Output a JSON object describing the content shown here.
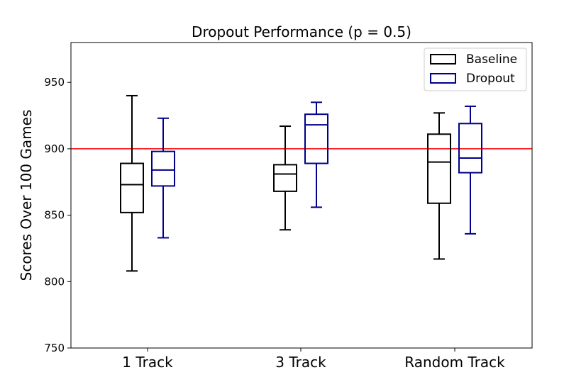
{
  "chart_data": {
    "type": "box",
    "title": "Dropout Performance (p = 0.5)",
    "xlabel": "",
    "ylabel": "Scores Over 100 Games",
    "categories": [
      "1 Track",
      "3 Track",
      "Random Track"
    ],
    "ylim": [
      750,
      980
    ],
    "yticks": [
      750,
      800,
      850,
      900,
      950
    ],
    "grid": false,
    "legend_position": "top-right",
    "reference_line": {
      "y": 900,
      "color": "#ff0000"
    },
    "series": [
      {
        "name": "Baseline",
        "color": "#000000",
        "boxes": [
          {
            "min": 808,
            "q1": 852,
            "median": 873,
            "q3": 889,
            "max": 940
          },
          {
            "min": 839,
            "q1": 868,
            "median": 881,
            "q3": 888,
            "max": 917
          },
          {
            "min": 817,
            "q1": 859,
            "median": 890,
            "q3": 911,
            "max": 927
          }
        ]
      },
      {
        "name": "Dropout",
        "color": "#00008b",
        "boxes": [
          {
            "min": 833,
            "q1": 872,
            "median": 884,
            "q3": 898,
            "max": 923
          },
          {
            "min": 856,
            "q1": 889,
            "median": 918,
            "q3": 926,
            "max": 935
          },
          {
            "min": 836,
            "q1": 882,
            "median": 893,
            "q3": 919,
            "max": 932
          }
        ]
      }
    ]
  }
}
